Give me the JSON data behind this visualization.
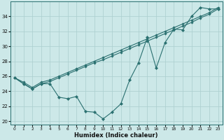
{
  "xlabel": "Humidex (Indice chaleur)",
  "background_color": "#cce8e8",
  "line_color": "#2a7070",
  "grid_color": "#aacece",
  "x": [
    0,
    1,
    2,
    3,
    4,
    5,
    6,
    7,
    8,
    9,
    10,
    11,
    12,
    13,
    14,
    15,
    16,
    17,
    18,
    19,
    20,
    21,
    22,
    23
  ],
  "line_smooth1": [
    25.8,
    25.0,
    24.3,
    25.0,
    25.3,
    25.8,
    26.3,
    26.8,
    27.3,
    27.8,
    28.2,
    28.7,
    29.2,
    29.7,
    30.2,
    30.7,
    31.2,
    31.7,
    32.2,
    32.7,
    33.2,
    33.8,
    34.3,
    35.0
  ],
  "line_smooth2": [
    25.8,
    25.2,
    24.5,
    25.2,
    25.5,
    26.0,
    26.5,
    27.0,
    27.5,
    28.0,
    28.5,
    29.0,
    29.5,
    30.0,
    30.5,
    31.0,
    31.5,
    32.0,
    32.5,
    33.0,
    33.5,
    34.0,
    34.5,
    35.2
  ],
  "line_jagged": [
    25.8,
    25.0,
    24.3,
    25.0,
    25.0,
    23.2,
    23.0,
    23.3,
    21.3,
    21.2,
    20.3,
    21.2,
    22.3,
    25.5,
    27.8,
    31.2,
    27.1,
    30.5,
    32.3,
    32.2,
    34.0,
    35.2,
    35.0,
    35.0
  ],
  "xlim": [
    -0.5,
    23.5
  ],
  "ylim": [
    19.5,
    36.0
  ],
  "yticks": [
    20,
    22,
    24,
    26,
    28,
    30,
    32,
    34
  ],
  "xticks": [
    0,
    1,
    2,
    3,
    4,
    5,
    6,
    7,
    8,
    9,
    10,
    11,
    12,
    13,
    14,
    15,
    16,
    17,
    18,
    19,
    20,
    21,
    22,
    23
  ]
}
